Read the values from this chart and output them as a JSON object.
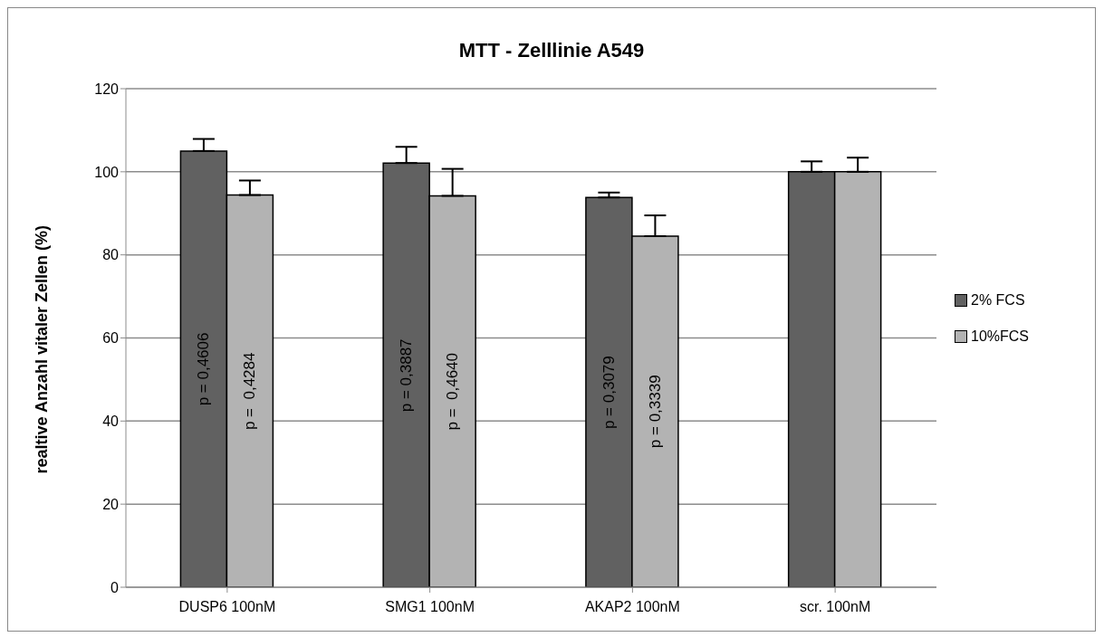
{
  "chart_data": {
    "type": "bar",
    "title": "MTT - Zelllinie A549",
    "ylabel": "realtive Anzahl vitaler Zellen (%)",
    "categories": [
      "DUSP6 100nM",
      "SMG1 100nM",
      "AKAP2 100nM",
      "scr. 100nM"
    ],
    "series": [
      {
        "name": "2% FCS",
        "color": "#616161",
        "values": [
          105,
          102.1,
          93.8,
          100
        ],
        "errors": [
          2.9,
          3.9,
          1.2,
          2.5
        ]
      },
      {
        "name": "10%FCS",
        "color": "#b3b3b3",
        "values": [
          94.4,
          94.2,
          84.5,
          100
        ],
        "errors": [
          3.5,
          6.5,
          5,
          3.4
        ]
      }
    ],
    "annotations": [
      {
        "text": "p = 0,4606",
        "x": "DUSP6 100nM",
        "y": 52.5
      },
      {
        "text": "p =  0,4284",
        "x": "DUSP6 100nM",
        "y": 47.2
      },
      {
        "text": "p = 0,3887",
        "x": "SMG1 100nM",
        "y": 51
      },
      {
        "text": "p =  0,4640",
        "x": "SMG1 100nM",
        "y": 47.1
      },
      {
        "text": "p = 0,3079",
        "x": "AKAP2 100nM",
        "y": 46.9
      },
      {
        "text": "p = 0,3339",
        "x": "AKAP2 100nM",
        "y": 42.3
      }
    ],
    "ylim": [
      0,
      120
    ],
    "yticks": [
      0,
      20,
      40,
      60,
      80,
      100,
      120
    ],
    "grid": "y",
    "legend": "right"
  }
}
